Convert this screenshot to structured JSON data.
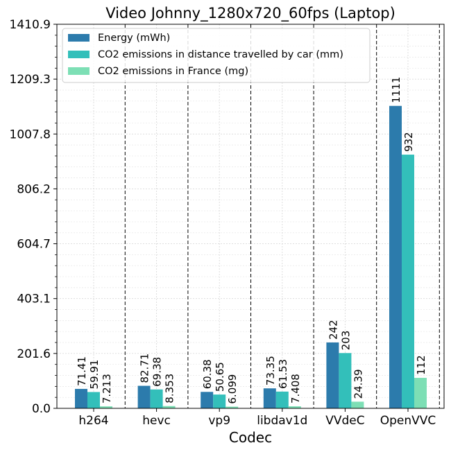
{
  "chart_data": {
    "type": "bar",
    "title": "Video Johnny_1280x720_60fps (Laptop)",
    "xlabel": "Codec",
    "ylabel": "",
    "categories": [
      "h264",
      "hevc",
      "vp9",
      "libdav1d",
      "VVdeC",
      "OpenVVC"
    ],
    "series": [
      {
        "name": "Energy (mWh)",
        "color": "#2c7bac",
        "values": [
          71.41,
          82.71,
          60.38,
          73.35,
          242,
          1111
        ],
        "labels": [
          "71.41",
          "82.71",
          "60.38",
          "73.35",
          "242",
          "1111"
        ]
      },
      {
        "name": "CO2 emissions in distance travelled by car (mm)",
        "color": "#33bfba",
        "values": [
          59.91,
          69.38,
          50.65,
          61.53,
          203,
          932
        ],
        "labels": [
          "59.91",
          "69.38",
          "50.65",
          "61.53",
          "203",
          "932"
        ]
      },
      {
        "name": "CO2 emissions in France (mg)",
        "color": "#7ddfb5",
        "values": [
          7.213,
          8.353,
          6.099,
          7.408,
          24.39,
          112
        ],
        "labels": [
          "7.213",
          "8.353",
          "6.099",
          "7.408",
          "24.39",
          "112"
        ]
      }
    ],
    "ylim": [
      0,
      1410.9
    ],
    "yticks": [
      "0.0",
      "201.6",
      "403.1",
      "604.7",
      "806.2",
      "1007.8",
      "1209.3",
      "1410.9"
    ],
    "grid": true,
    "legend": "top-left"
  }
}
